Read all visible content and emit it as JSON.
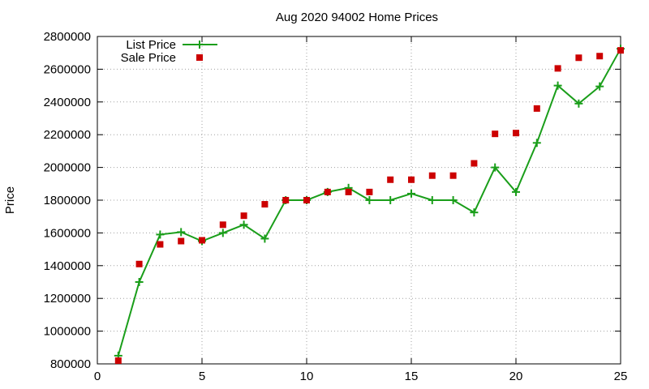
{
  "chart_data": {
    "type": "line",
    "title": "Aug 2020 94002 Home Prices",
    "xlabel": "",
    "ylabel": "Price",
    "xlim": [
      0,
      25
    ],
    "ylim": [
      800000,
      2800000
    ],
    "xticks": [
      "0",
      "5",
      "10",
      "15",
      "20",
      "25"
    ],
    "yticks": [
      "800000",
      "1000000",
      "1200000",
      "1400000",
      "1600000",
      "1800000",
      "2000000",
      "2200000",
      "2400000",
      "2600000",
      "2800000"
    ],
    "grid": true,
    "legend_position": "top-left",
    "series": [
      {
        "name": "List Price",
        "style": "line-with-plus-markers",
        "color": "#1a9e1a",
        "x": [
          1,
          2,
          3,
          4,
          5,
          6,
          7,
          8,
          9,
          10,
          11,
          12,
          13,
          14,
          15,
          16,
          17,
          18,
          19,
          20,
          21,
          22,
          23,
          24,
          25
        ],
        "y": [
          850000,
          1300000,
          1590000,
          1605000,
          1550000,
          1600000,
          1650000,
          1565000,
          1800000,
          1800000,
          1850000,
          1875000,
          1800000,
          1800000,
          1840000,
          1800000,
          1800000,
          1725000,
          2000000,
          1850000,
          2150000,
          2500000,
          2390000,
          2495000,
          2725000
        ]
      },
      {
        "name": "Sale Price",
        "style": "square-markers",
        "color": "#cc0000",
        "x": [
          1,
          2,
          3,
          4,
          5,
          6,
          7,
          8,
          9,
          10,
          11,
          12,
          13,
          14,
          15,
          16,
          17,
          18,
          19,
          20,
          21,
          22,
          23,
          24,
          25
        ],
        "y": [
          820000,
          1410000,
          1530000,
          1550000,
          1555000,
          1650000,
          1705000,
          1775000,
          1800000,
          1800000,
          1850000,
          1850000,
          1850000,
          1925000,
          1925000,
          1950000,
          1950000,
          2025000,
          2205000,
          2210000,
          2360000,
          2605000,
          2670000,
          2680000,
          2715000
        ]
      }
    ]
  }
}
